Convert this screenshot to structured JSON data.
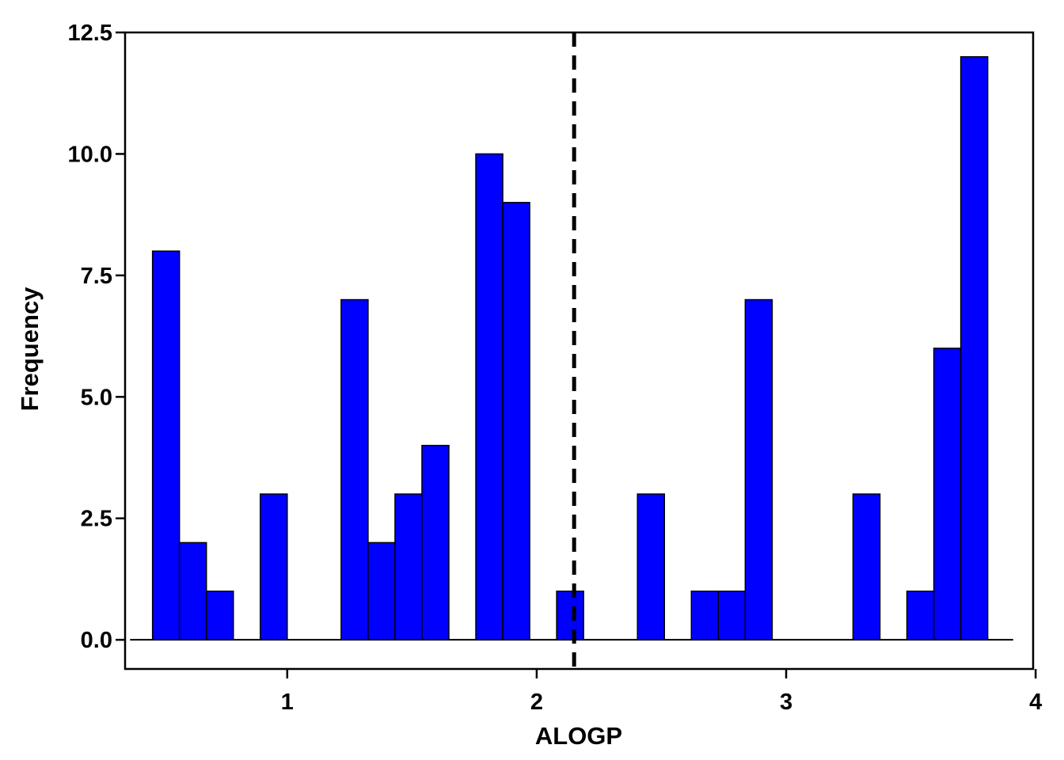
{
  "chart_data": {
    "type": "bar",
    "xlabel": "ALOGP",
    "ylabel": "Frequency",
    "xlim": [
      0.35,
      3.99
    ],
    "ylim": [
      -0.6,
      12.5
    ],
    "x_ticks": [
      1,
      2,
      3,
      4
    ],
    "x_tick_labels": [
      "1",
      "2",
      "3",
      "4"
    ],
    "y_ticks": [
      0,
      2.5,
      5,
      7.5,
      10,
      12.5
    ],
    "y_tick_labels": [
      "0.0",
      "2.5",
      "5.0",
      "7.5",
      "10.0",
      "12.5"
    ],
    "bin_width": 0.108,
    "bins": [
      {
        "x0": 0.46,
        "count": 8
      },
      {
        "x0": 0.568,
        "count": 2
      },
      {
        "x0": 0.676,
        "count": 1
      },
      {
        "x0": 0.892,
        "count": 3
      },
      {
        "x0": 1.216,
        "count": 7
      },
      {
        "x0": 1.324,
        "count": 2
      },
      {
        "x0": 1.432,
        "count": 3
      },
      {
        "x0": 1.54,
        "count": 4
      },
      {
        "x0": 1.756,
        "count": 10
      },
      {
        "x0": 1.864,
        "count": 9
      },
      {
        "x0": 2.08,
        "count": 1
      },
      {
        "x0": 2.404,
        "count": 3
      },
      {
        "x0": 2.62,
        "count": 1
      },
      {
        "x0": 2.728,
        "count": 1
      },
      {
        "x0": 2.836,
        "count": 7
      },
      {
        "x0": 3.268,
        "count": 3
      },
      {
        "x0": 3.484,
        "count": 1
      },
      {
        "x0": 3.592,
        "count": 6
      },
      {
        "x0": 3.7,
        "count": 12
      }
    ],
    "baseline_range": [
      0.37,
      3.91
    ],
    "reference_line_x": 2.15,
    "bar_color": "#0000ff",
    "grid": false,
    "legend": "none"
  }
}
